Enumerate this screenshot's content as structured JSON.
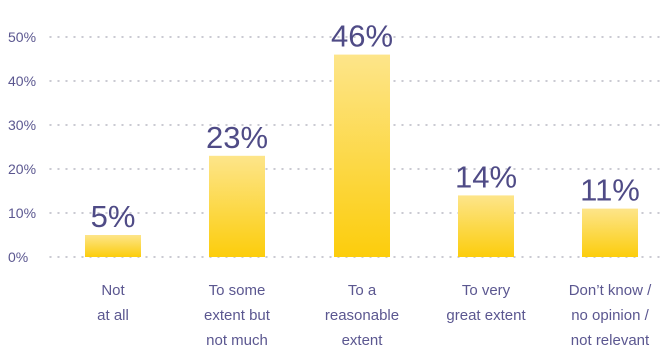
{
  "chart_data": {
    "type": "bar",
    "categories": [
      [
        "Not",
        "at all"
      ],
      [
        "To some",
        "extent but",
        "not much"
      ],
      [
        "To a",
        "reasonable",
        "extent"
      ],
      [
        "To very",
        "great extent"
      ],
      [
        "Don’t know /",
        "no opinion /",
        "not relevant"
      ]
    ],
    "values": [
      5,
      23,
      46,
      14,
      11
    ],
    "data_labels": [
      "5%",
      "23%",
      "46%",
      "14%",
      "11%"
    ],
    "yticks": [
      0,
      10,
      20,
      30,
      40,
      50
    ],
    "ytick_labels": [
      "0%",
      "10%",
      "20%",
      "30%",
      "40%",
      "50%"
    ],
    "ylim": [
      0,
      50
    ],
    "grid": "dotted-horizontal",
    "colors": {
      "bar_top": "#fde58a",
      "bar_bottom": "#fccd0c",
      "grid": "#b9b9c4",
      "label_text": "#5b5790"
    }
  }
}
